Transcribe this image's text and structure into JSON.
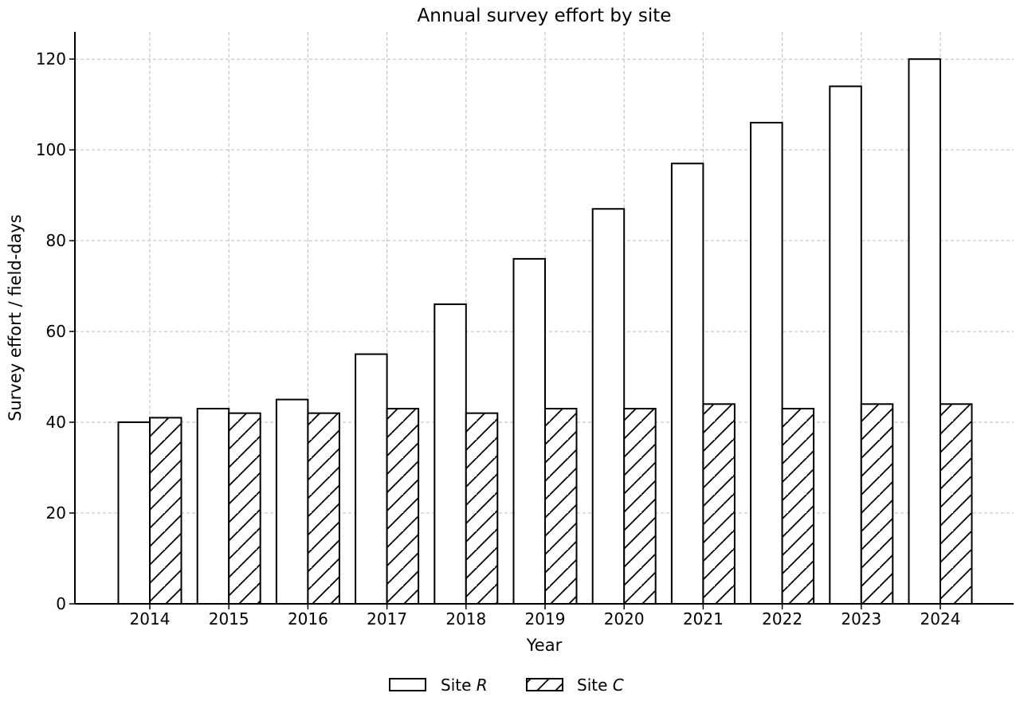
{
  "chart_data": {
    "type": "bar",
    "title": "Annual survey effort by site",
    "xlabel": "Year",
    "ylabel": "Survey effort / field-days",
    "categories": [
      "2014",
      "2015",
      "2016",
      "2017",
      "2018",
      "2019",
      "2020",
      "2021",
      "2022",
      "2023",
      "2024"
    ],
    "series": [
      {
        "name": "Site R",
        "name_prefix": "Site ",
        "name_symbol": "R",
        "fill": "#ffffff",
        "hatch": "none",
        "values": [
          40,
          43,
          45,
          55,
          66,
          76,
          87,
          97,
          106,
          114,
          120
        ]
      },
      {
        "name": "Site C",
        "name_prefix": "Site ",
        "name_symbol": "C",
        "fill": "#ffffff",
        "hatch": "diagonal",
        "values": [
          41,
          42,
          42,
          43,
          42,
          43,
          43,
          44,
          43,
          44,
          44
        ]
      }
    ],
    "ylim": [
      0,
      126
    ],
    "yticks": [
      0,
      20,
      40,
      60,
      80,
      100,
      120
    ],
    "grid": true,
    "legend_position": "bottom-center",
    "colors": {
      "edge": "#000000",
      "grid": "#bbbbbb"
    }
  }
}
